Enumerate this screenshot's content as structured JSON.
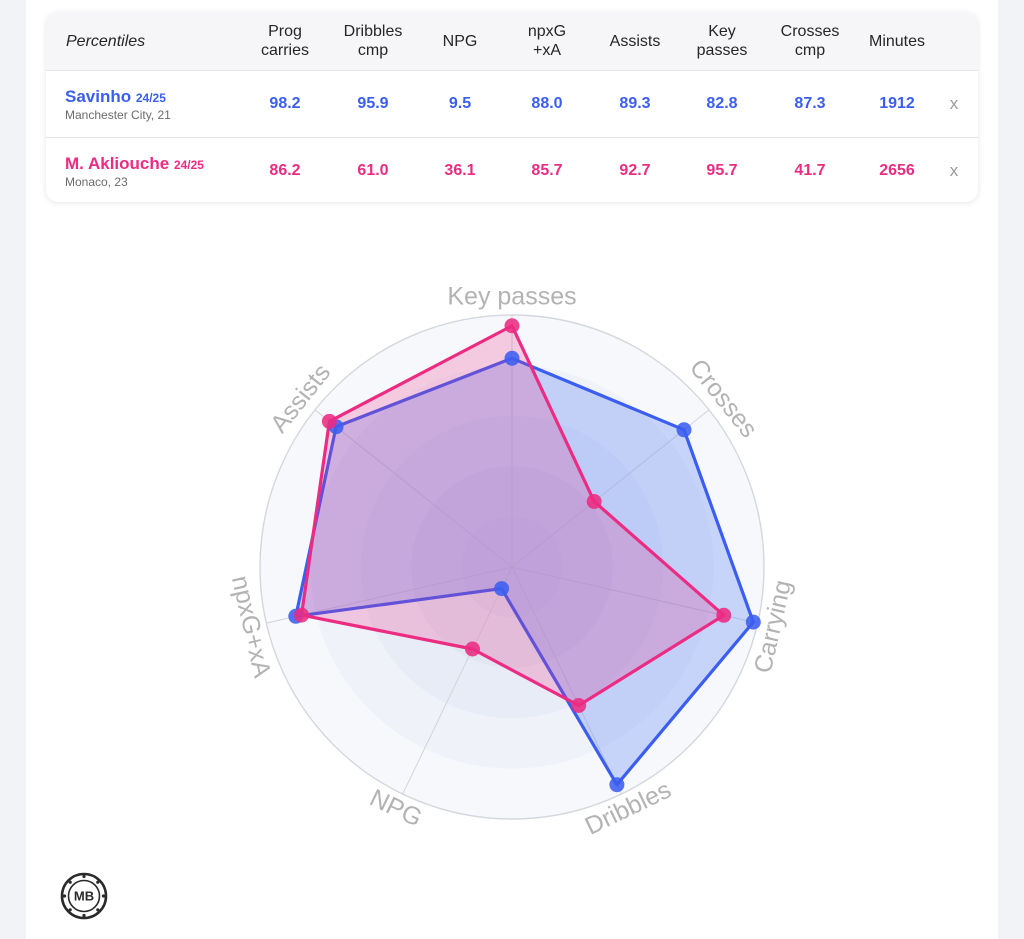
{
  "table": {
    "header_label": "Percentiles",
    "columns": [
      [
        "Prog",
        "carries"
      ],
      [
        "Dribbles",
        "cmp"
      ],
      [
        "NPG"
      ],
      [
        "npxG",
        "+xA"
      ],
      [
        "Assists"
      ],
      [
        "Key",
        "passes"
      ],
      [
        "Crosses",
        "cmp"
      ],
      [
        "Minutes"
      ]
    ],
    "players": [
      {
        "name": "Savinho",
        "season": "24/25",
        "subtitle": "Manchester City, 21",
        "values": [
          "98.2",
          "95.9",
          "9.5",
          "88.0",
          "89.3",
          "82.8",
          "87.3",
          "1912"
        ],
        "remove": "x"
      },
      {
        "name": "M. Akliouche",
        "season": "24/25",
        "subtitle": "Monaco, 23",
        "values": [
          "86.2",
          "61.0",
          "36.1",
          "85.7",
          "92.7",
          "95.7",
          "41.7",
          "2656"
        ],
        "remove": "x"
      }
    ]
  },
  "chart_data": {
    "type": "radar",
    "axes": [
      "Key passes",
      "Crosses",
      "Carrying",
      "Dribbles",
      "NPG",
      "npxG+xA",
      "Assists"
    ],
    "range": [
      0,
      100
    ],
    "series": [
      {
        "name": "Savinho",
        "color": "#3b5ef0",
        "fill": "rgba(90,130,245,0.30)",
        "values": [
          82.8,
          87.3,
          98.2,
          95.9,
          9.5,
          88.0,
          89.3
        ]
      },
      {
        "name": "M. Akliouche",
        "color": "#ec2b82",
        "fill": "rgba(236,43,130,0.22)",
        "values": [
          95.7,
          41.7,
          86.2,
          61.0,
          36.1,
          85.7,
          92.7
        ]
      }
    ]
  },
  "logo": {
    "text": "MB"
  }
}
